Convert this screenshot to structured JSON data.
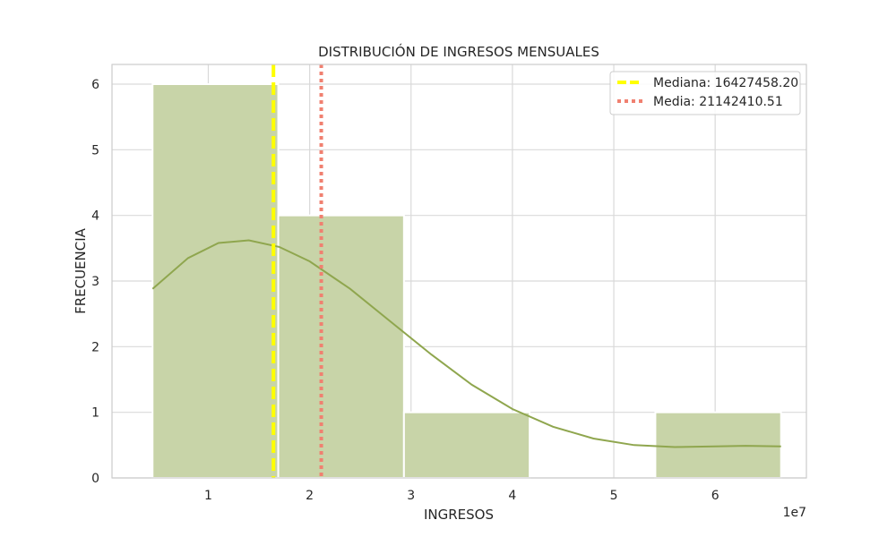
{
  "chart_data": {
    "type": "bar",
    "title": "DISTRIBUCIÓN DE INGRESOS MENSUALES",
    "xlabel": "INGRESOS",
    "ylabel": "FRECUENCIA",
    "x_scale_label": "1e7",
    "x_unit_multiplier": 10000000,
    "xlim": [
      0.05,
      6.9
    ],
    "ylim": [
      0,
      6.3
    ],
    "x_ticks": [
      1,
      2,
      3,
      4,
      5,
      6
    ],
    "y_ticks": [
      0,
      1,
      2,
      3,
      4,
      5,
      6
    ],
    "grid": true,
    "bins": [
      {
        "start": 0.45,
        "end": 1.69,
        "count": 6
      },
      {
        "start": 1.69,
        "end": 2.93,
        "count": 4
      },
      {
        "start": 2.93,
        "end": 4.17,
        "count": 1
      },
      {
        "start": 4.17,
        "end": 5.41,
        "count": 0
      },
      {
        "start": 5.41,
        "end": 6.65,
        "count": 1
      }
    ],
    "bar_color": "#c8d4a8",
    "kde_color": "#8fa64e",
    "kde": {
      "x": [
        0.45,
        0.8,
        1.1,
        1.4,
        1.7,
        2.0,
        2.4,
        2.8,
        3.2,
        3.6,
        4.0,
        4.4,
        4.8,
        5.2,
        5.6,
        6.0,
        6.3,
        6.65
      ],
      "y": [
        2.88,
        3.35,
        3.58,
        3.62,
        3.52,
        3.3,
        2.88,
        2.38,
        1.88,
        1.42,
        1.05,
        0.78,
        0.6,
        0.5,
        0.47,
        0.48,
        0.49,
        0.48
      ]
    },
    "reference_lines": [
      {
        "label": "Mediana: 16427458.20",
        "value": 1.64274582,
        "color": "#ffff00",
        "style": "dashed"
      },
      {
        "label": "Media: 21142410.51",
        "value": 2.11424105,
        "color": "#f08070",
        "style": "dotted"
      }
    ],
    "legend_position": "top-right"
  }
}
